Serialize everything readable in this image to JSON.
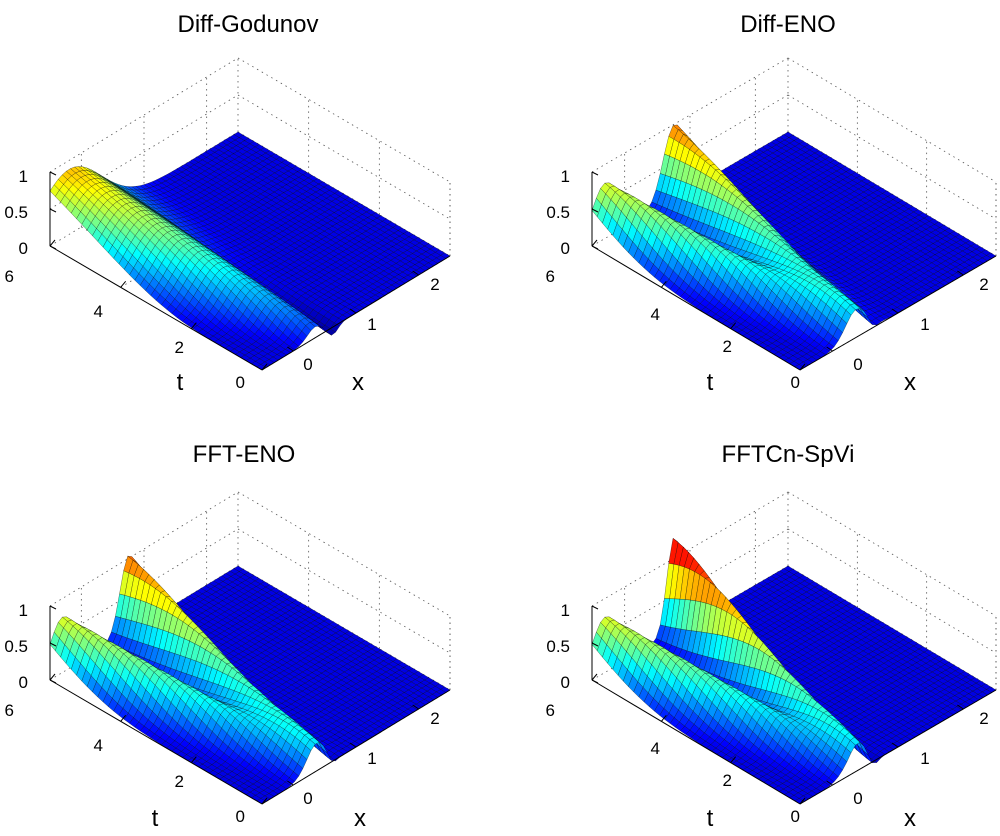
{
  "chart_data": [
    {
      "type": "surface",
      "title": "Diff-Godunov",
      "xlabel": "x",
      "ylabel": "t",
      "xlim": [
        -0.5,
        2.5
      ],
      "ylim": [
        0,
        6
      ],
      "zlim": [
        0,
        1
      ],
      "xticks": [
        "0",
        "1",
        "2"
      ],
      "yticks": [
        "0",
        "2",
        "4",
        "6"
      ],
      "zticks": [
        "0",
        "0.5",
        "1"
      ],
      "grid": true,
      "colormap": "jet",
      "wave_peak": 0.88,
      "wave_shape": "left-moving wave spreads and diffuses into a broad smooth hump toward t=6"
    },
    {
      "type": "surface",
      "title": "Diff-ENO",
      "xlabel": "x",
      "ylabel": "t",
      "xlim": [
        -0.5,
        2.5
      ],
      "ylim": [
        0,
        6
      ],
      "zlim": [
        0,
        1
      ],
      "xticks": [
        "0",
        "1",
        "2"
      ],
      "yticks": [
        "0",
        "2",
        "4",
        "6"
      ],
      "zticks": [
        "0",
        "0.5",
        "1"
      ],
      "grid": true,
      "colormap": "jet",
      "wave_peak": 1.0,
      "wave_shape": "two crossing waves, right-moving crest grows to about 1.0 at t=6"
    },
    {
      "type": "surface",
      "title": "FFT-ENO",
      "xlabel": "x",
      "ylabel": "t",
      "xlim": [
        -0.5,
        2.5
      ],
      "ylim": [
        0,
        6
      ],
      "zlim": [
        0,
        1
      ],
      "xticks": [
        "0",
        "1",
        "2"
      ],
      "yticks": [
        "0",
        "2",
        "4",
        "6"
      ],
      "zticks": [
        "0",
        "0.5",
        "1"
      ],
      "grid": true,
      "colormap": "jet",
      "wave_peak": 1.05,
      "wave_shape": "two crossing waves with sharper right-moving crest reaching about 1.05"
    },
    {
      "type": "surface",
      "title": "FFTCn-SpVi",
      "xlabel": "x",
      "ylabel": "t",
      "xlim": [
        -0.5,
        2.5
      ],
      "ylim": [
        0,
        6
      ],
      "zlim": [
        0,
        1
      ],
      "xticks": [
        "0",
        "1",
        "2"
      ],
      "yticks": [
        "0",
        "2",
        "4",
        "6"
      ],
      "zticks": [
        "0",
        "0.5",
        "1"
      ],
      "grid": true,
      "colormap": "jet",
      "wave_peak": 1.3,
      "wave_shape": "two crossing waves, narrow right-moving crest peaks above 1.2"
    }
  ]
}
